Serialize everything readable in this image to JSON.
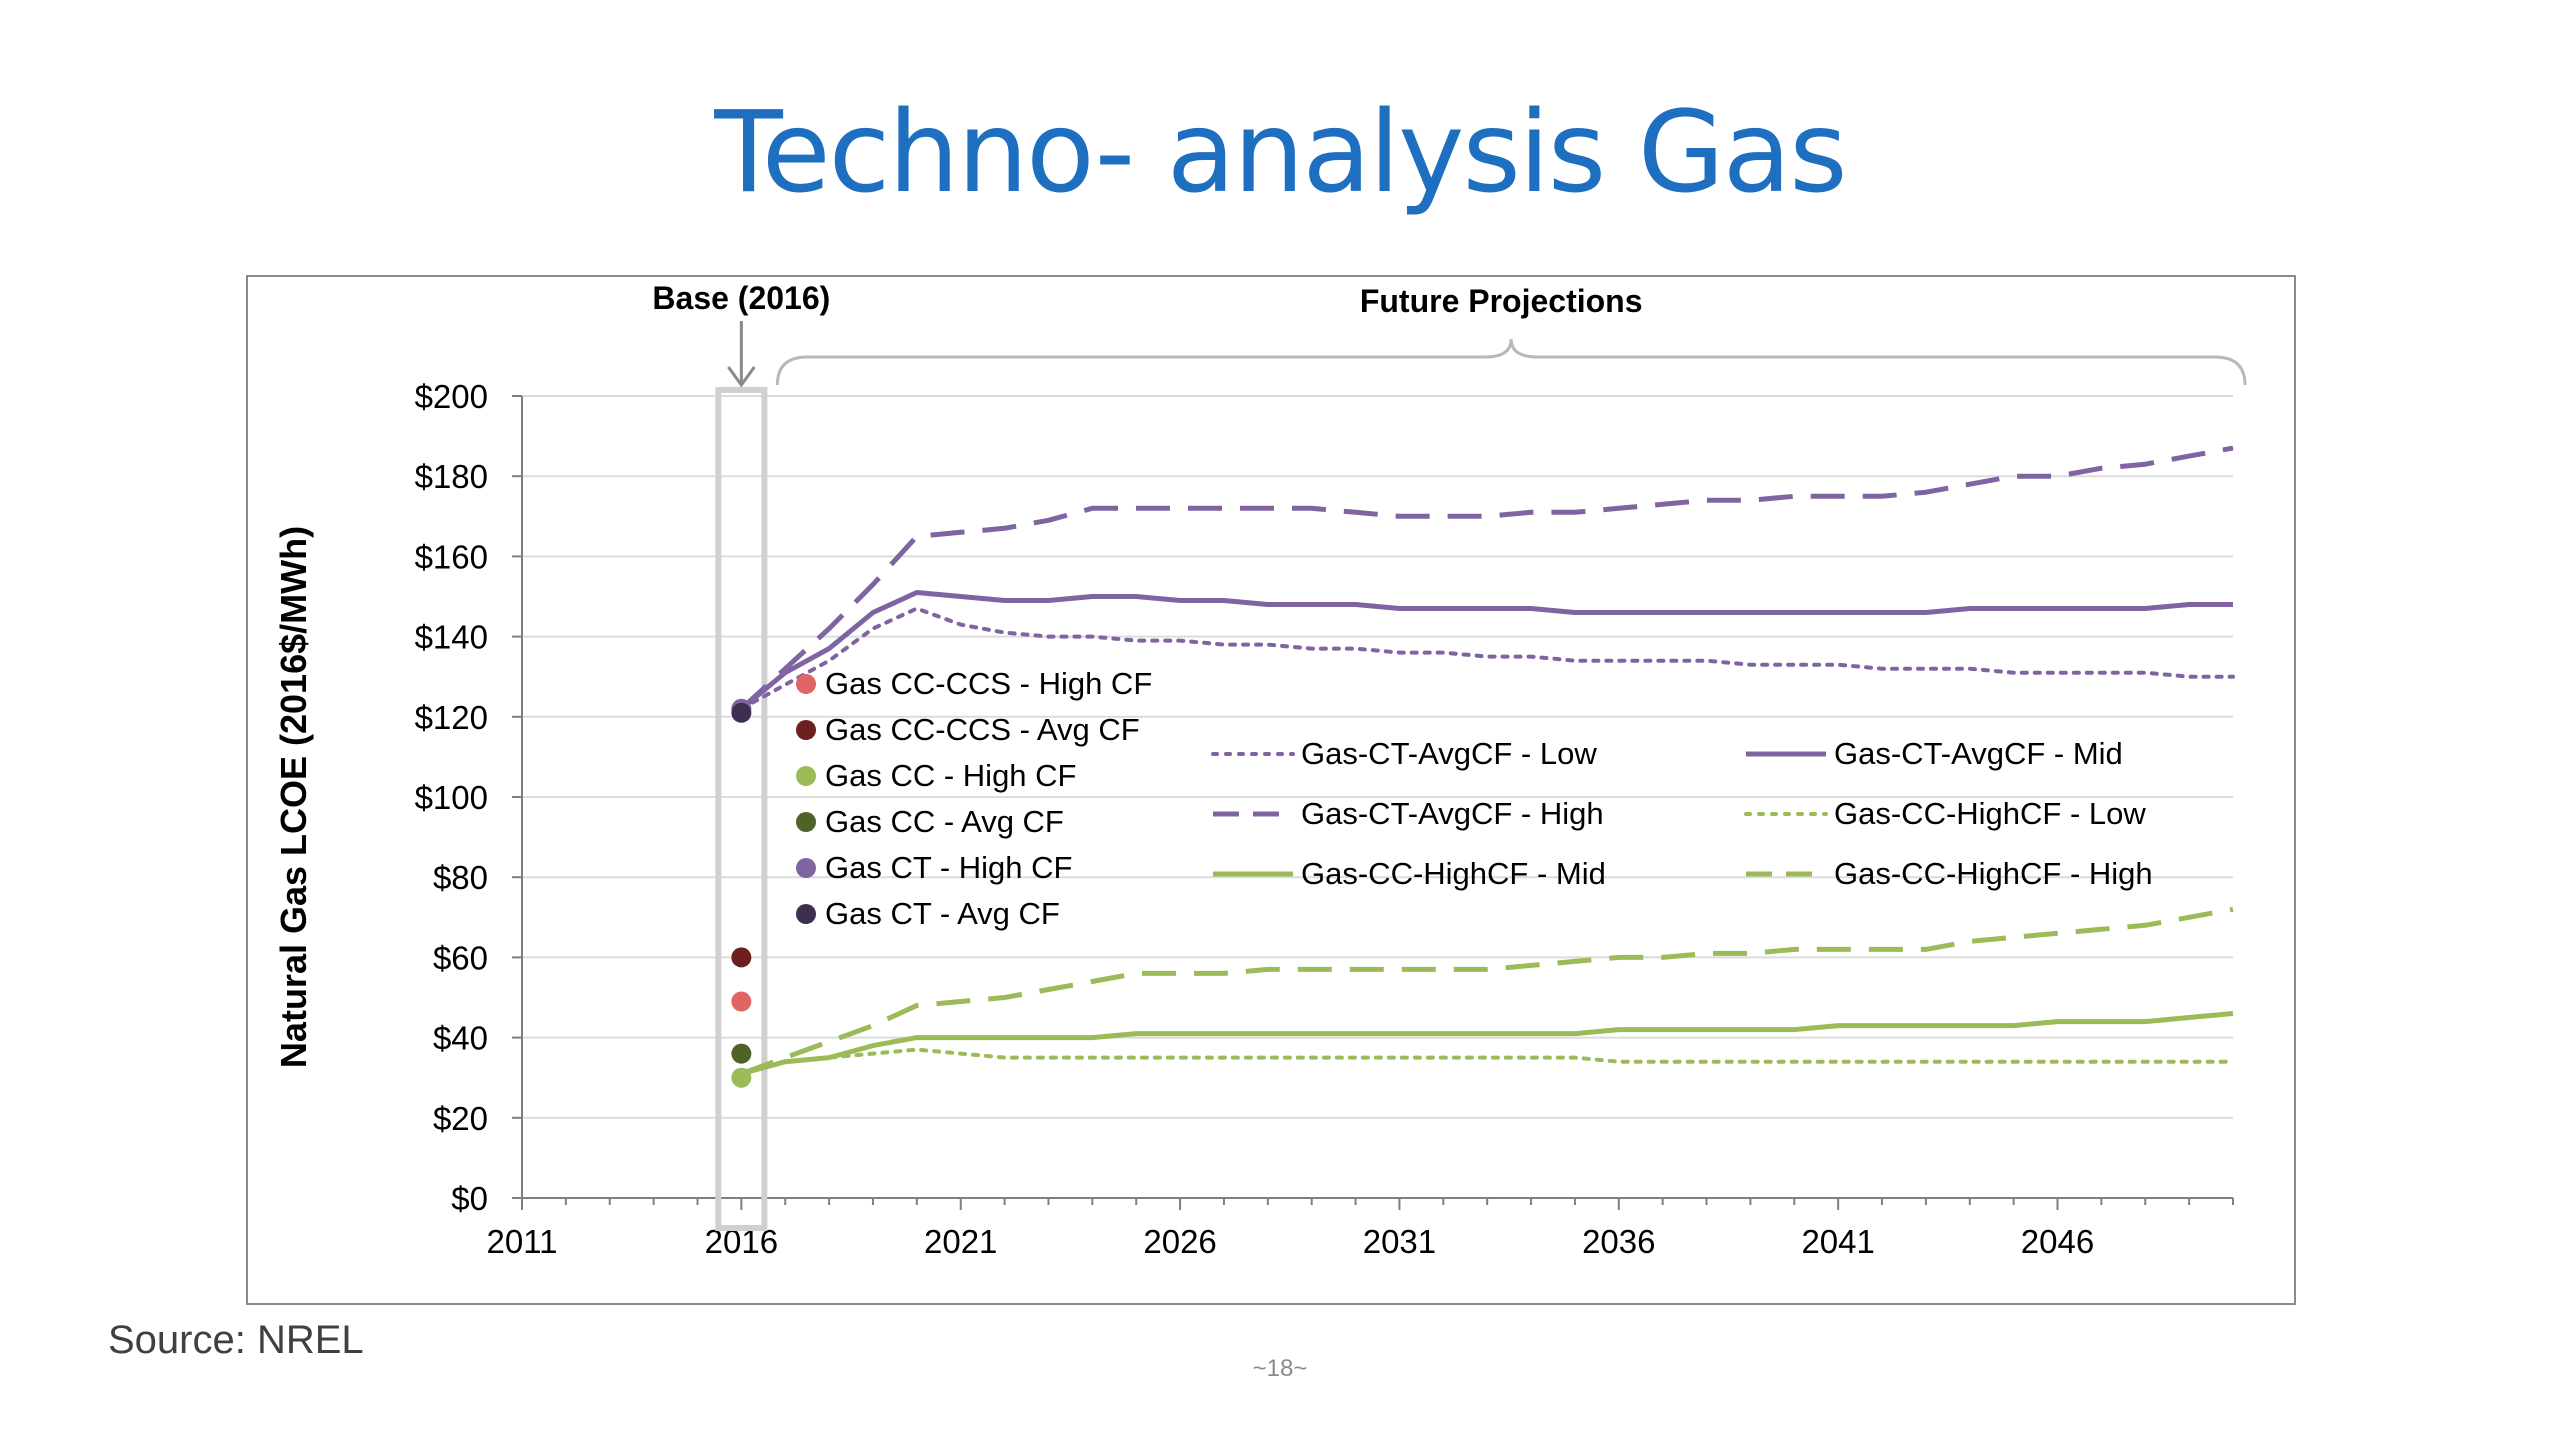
{
  "slide": {
    "title": "Techno- analysis Gas",
    "source": "Source: NREL",
    "page_number": "~18~"
  },
  "colors": {
    "title": "#1f6fc0",
    "purple": "#8064a2",
    "green": "#9bbb59",
    "cc_ccs_high": "#e06666",
    "cc_ccs_avg": "#6b1f1f",
    "cc_avg": "#4f6228",
    "ct_avg": "#3f2f4f",
    "base_box": "#d0d0d0"
  },
  "chart_data": {
    "type": "line",
    "title": "",
    "xlabel": "",
    "ylabel": "Natural Gas LCOE (2016$/MWh)",
    "xlim": [
      2011,
      2050
    ],
    "ylim": [
      0,
      200
    ],
    "x_ticks": [
      2011,
      2016,
      2021,
      2026,
      2031,
      2036,
      2041,
      2046
    ],
    "x_tick_labels": [
      "2011",
      "2016",
      "2021",
      "2026",
      "2031",
      "2036",
      "2041",
      "2046"
    ],
    "y_ticks": [
      0,
      20,
      40,
      60,
      80,
      100,
      120,
      140,
      160,
      180,
      200
    ],
    "y_tick_labels": [
      "$0",
      "$20",
      "$40",
      "$60",
      "$80",
      "$100",
      "$120",
      "$140",
      "$160",
      "$180",
      "$200"
    ],
    "grid": true,
    "annotations": {
      "base": "Base (2016)",
      "future": "Future Projections"
    },
    "base_points": [
      {
        "name": "Gas CC-CCS - High CF",
        "year": 2016,
        "value": 49,
        "color_key": "cc_ccs_high"
      },
      {
        "name": "Gas CC-CCS - Avg CF",
        "year": 2016,
        "value": 60,
        "color_key": "cc_ccs_avg"
      },
      {
        "name": "Gas CC - High CF",
        "year": 2016,
        "value": 30,
        "color_key": "green"
      },
      {
        "name": "Gas CC - Avg CF",
        "year": 2016,
        "value": 36,
        "color_key": "cc_avg"
      },
      {
        "name": "Gas CT - High CF",
        "year": 2016,
        "value": 122,
        "color_key": "purple"
      },
      {
        "name": "Gas CT - Avg CF",
        "year": 2016,
        "value": 121,
        "color_key": "ct_avg"
      }
    ],
    "x": [
      2016,
      2017,
      2018,
      2019,
      2020,
      2021,
      2022,
      2023,
      2024,
      2025,
      2026,
      2027,
      2028,
      2029,
      2030,
      2031,
      2032,
      2033,
      2034,
      2035,
      2036,
      2037,
      2038,
      2039,
      2040,
      2041,
      2042,
      2043,
      2044,
      2045,
      2046,
      2047,
      2048,
      2049,
      2050
    ],
    "series": [
      {
        "name": "Gas-CT-AvgCF - Low",
        "color_key": "purple",
        "dash": "dotted",
        "values": [
          122,
          128,
          134,
          142,
          147,
          143,
          141,
          140,
          140,
          139,
          139,
          138,
          138,
          137,
          137,
          136,
          136,
          135,
          135,
          134,
          134,
          134,
          134,
          133,
          133,
          133,
          132,
          132,
          132,
          131,
          131,
          131,
          131,
          130,
          130
        ]
      },
      {
        "name": "Gas-CT-AvgCF - Mid",
        "color_key": "purple",
        "dash": "solid",
        "values": [
          122,
          131,
          137,
          146,
          151,
          150,
          149,
          149,
          150,
          150,
          149,
          149,
          148,
          148,
          148,
          147,
          147,
          147,
          147,
          146,
          146,
          146,
          146,
          146,
          146,
          146,
          146,
          146,
          147,
          147,
          147,
          147,
          147,
          148,
          148
        ]
      },
      {
        "name": "Gas-CT-AvgCF - High",
        "color_key": "purple",
        "dash": "dashed",
        "values": [
          122,
          132,
          142,
          153,
          165,
          166,
          167,
          169,
          172,
          172,
          172,
          172,
          172,
          172,
          171,
          170,
          170,
          170,
          171,
          171,
          172,
          173,
          174,
          174,
          175,
          175,
          175,
          176,
          178,
          180,
          180,
          182,
          183,
          185,
          187
        ]
      },
      {
        "name": "Gas-CC-HighCF - Low",
        "color_key": "green",
        "dash": "dotted",
        "values": [
          31,
          34,
          35,
          36,
          37,
          36,
          35,
          35,
          35,
          35,
          35,
          35,
          35,
          35,
          35,
          35,
          35,
          35,
          35,
          35,
          34,
          34,
          34,
          34,
          34,
          34,
          34,
          34,
          34,
          34,
          34,
          34,
          34,
          34,
          34
        ]
      },
      {
        "name": "Gas-CC-HighCF - Mid",
        "color_key": "green",
        "dash": "solid",
        "values": [
          31,
          34,
          35,
          38,
          40,
          40,
          40,
          40,
          40,
          41,
          41,
          41,
          41,
          41,
          41,
          41,
          41,
          41,
          41,
          41,
          42,
          42,
          42,
          42,
          42,
          43,
          43,
          43,
          43,
          43,
          44,
          44,
          44,
          45,
          46
        ]
      },
      {
        "name": "Gas-CC-HighCF - High",
        "color_key": "green",
        "dash": "dashed",
        "values": [
          31,
          35,
          39,
          43,
          48,
          49,
          50,
          52,
          54,
          56,
          56,
          56,
          57,
          57,
          57,
          57,
          57,
          57,
          58,
          59,
          60,
          60,
          61,
          61,
          62,
          62,
          62,
          62,
          64,
          65,
          66,
          67,
          68,
          70,
          72
        ]
      }
    ]
  }
}
